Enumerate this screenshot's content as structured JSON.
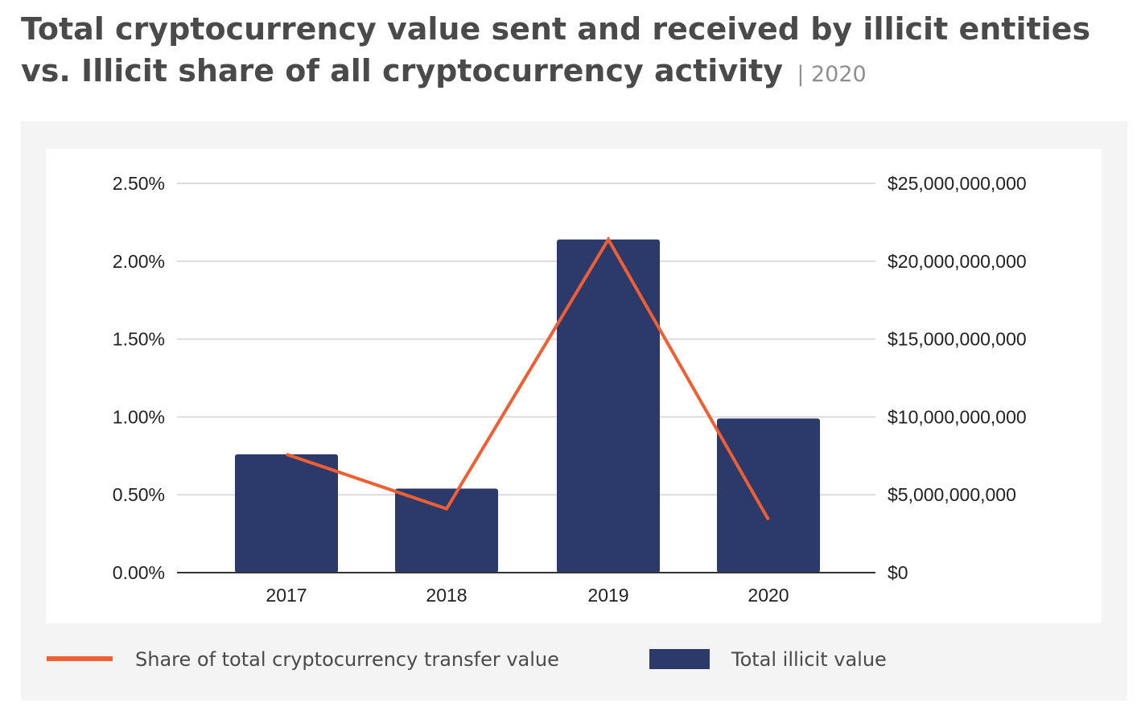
{
  "title": {
    "main": "Total cryptocurrency value sent and received by illicit entities vs. Illicit share of all cryptocurrency activity",
    "year": "| 2020"
  },
  "colors": {
    "bar": "#2b3a6b",
    "line": "#ef5f32",
    "grid": "#d2d2d2",
    "axis": "#333333",
    "panel": "#f4f4f4"
  },
  "chart_data": {
    "type": "bar",
    "categories": [
      "2017",
      "2018",
      "2019",
      "2020"
    ],
    "series": [
      {
        "name": "Total illicit value",
        "type": "bar",
        "axis": "right",
        "values": [
          7600000000,
          5400000000,
          21400000000,
          9900000000
        ]
      },
      {
        "name": "Share of total cryptocurrency transfer value",
        "type": "line",
        "axis": "left",
        "values": [
          0.76,
          0.41,
          2.14,
          0.34
        ]
      }
    ],
    "y_left": {
      "ylim": [
        0,
        2.5
      ],
      "ticks": [
        0,
        0.5,
        1.0,
        1.5,
        2.0,
        2.5
      ],
      "tick_labels": [
        "0.00%",
        "0.50%",
        "1.00%",
        "1.50%",
        "2.00%",
        "2.50%"
      ]
    },
    "y_right": {
      "ylim": [
        0,
        25000000000
      ],
      "ticks": [
        0,
        5000000000,
        10000000000,
        15000000000,
        20000000000,
        25000000000
      ],
      "tick_labels": [
        "$0",
        "$5,000,000,000",
        "$10,000,000,000",
        "$15,000,000,000",
        "$20,000,000,000",
        "$25,000,000,000"
      ]
    },
    "grid": true,
    "legend": "bottom"
  }
}
